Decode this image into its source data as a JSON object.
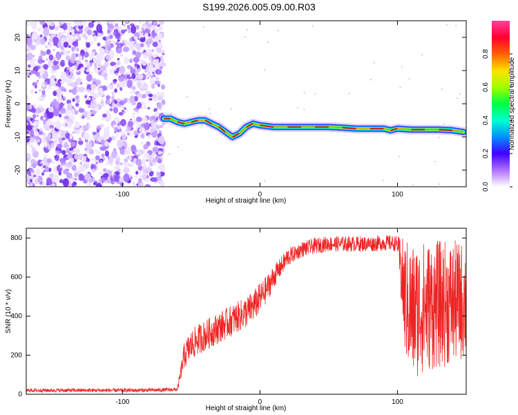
{
  "title": "S199.2026.005.09.00.R03",
  "colors": {
    "line": "#ee2222",
    "frame": "#000000",
    "track": "#1a1a1a"
  },
  "chart_data": [
    {
      "type": "heatmap",
      "xlabel": "Height of straight line (km)",
      "ylabel": "Frequency (Hz)",
      "xlim": [
        -170,
        150
      ],
      "ylim": [
        -25,
        25
      ],
      "xticks": [
        -100,
        0,
        100
      ],
      "yticks": [
        -20,
        -10,
        0,
        10,
        20
      ],
      "noise_region_x": [
        -170,
        -70
      ],
      "signal_track": {
        "x": [
          -70,
          -65,
          -60,
          -55,
          -50,
          -45,
          -40,
          -35,
          -30,
          -25,
          -20,
          -15,
          -10,
          -5,
          0,
          10,
          20,
          30,
          40,
          50,
          60,
          70,
          80,
          90,
          95,
          100,
          110,
          120,
          130,
          140,
          148
        ],
        "freq": [
          -4.5,
          -4.5,
          -5.5,
          -6.0,
          -5.5,
          -5.0,
          -5.0,
          -6.0,
          -7.0,
          -8.5,
          -10.0,
          -9.0,
          -7.0,
          -6.0,
          -6.5,
          -7.0,
          -7.0,
          -7.0,
          -7.0,
          -7.0,
          -7.2,
          -7.5,
          -7.5,
          -7.5,
          -8.0,
          -7.5,
          -7.8,
          -7.8,
          -7.8,
          -8.0,
          -8.5
        ]
      },
      "colorbar": {
        "label": "Normalized spectral amplitude",
        "range": [
          0,
          1
        ],
        "ticks": [
          "0.0",
          "0.2",
          "0.4",
          "0.6",
          "0.8"
        ]
      }
    },
    {
      "type": "line",
      "xlabel": "Height of straight line (km)",
      "ylabel": "SNR (10 * v/v)",
      "xlim": [
        -170,
        150
      ],
      "ylim": [
        0,
        850
      ],
      "xticks": [
        -100,
        0,
        100
      ],
      "yticks": [
        0,
        200,
        400,
        600,
        800
      ],
      "series": [
        {
          "name": "SNR",
          "x": [
            -170,
            -150,
            -130,
            -110,
            -90,
            -70,
            -60,
            -55,
            -50,
            -45,
            -40,
            -35,
            -30,
            -25,
            -20,
            -15,
            -10,
            -5,
            0,
            5,
            10,
            15,
            20,
            25,
            30,
            40,
            50,
            60,
            70,
            80,
            90,
            95,
            100,
            105,
            110,
            120,
            130,
            140,
            150
          ],
          "mean": [
            20,
            20,
            20,
            20,
            20,
            22,
            25,
            200,
            250,
            280,
            300,
            320,
            340,
            360,
            380,
            400,
            420,
            450,
            490,
            540,
            600,
            650,
            700,
            720,
            740,
            760,
            770,
            770,
            770,
            770,
            775,
            775,
            770,
            500,
            420,
            450,
            460,
            470,
            480
          ],
          "spread": [
            10,
            10,
            10,
            10,
            10,
            10,
            10,
            70,
            80,
            80,
            80,
            80,
            80,
            80,
            80,
            80,
            80,
            80,
            80,
            70,
            60,
            50,
            50,
            40,
            40,
            40,
            40,
            40,
            40,
            40,
            40,
            40,
            40,
            300,
            360,
            340,
            330,
            320,
            300
          ]
        }
      ]
    }
  ]
}
